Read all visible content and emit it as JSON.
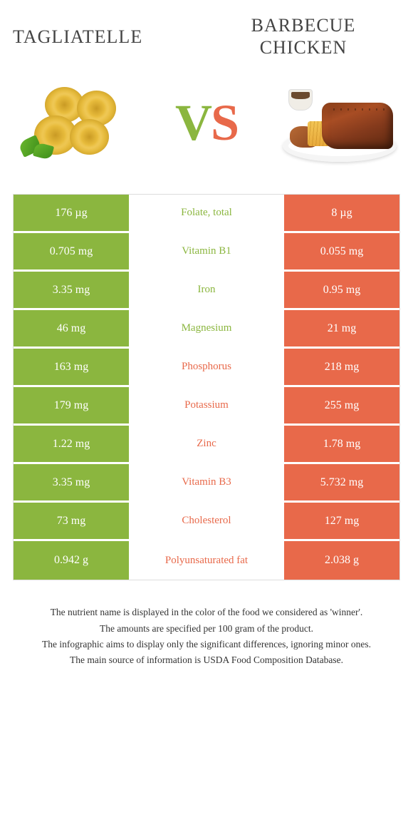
{
  "foods": {
    "left": {
      "name": "TAGLIATELLE",
      "color": "#8bb63f"
    },
    "right": {
      "name": "BARBECUE CHICKEN",
      "color": "#e8694a"
    }
  },
  "vs": {
    "v": "V",
    "s": "S"
  },
  "colors": {
    "green": "#8bb63f",
    "orange": "#e8694a",
    "row_gap": "#ffffff",
    "border": "#dddddd"
  },
  "rows": [
    {
      "nutrient": "Folate, total",
      "left": "176 µg",
      "right": "8 µg",
      "winner": "left"
    },
    {
      "nutrient": "Vitamin B1",
      "left": "0.705 mg",
      "right": "0.055 mg",
      "winner": "left"
    },
    {
      "nutrient": "Iron",
      "left": "3.35 mg",
      "right": "0.95 mg",
      "winner": "left"
    },
    {
      "nutrient": "Magnesium",
      "left": "46 mg",
      "right": "21 mg",
      "winner": "left"
    },
    {
      "nutrient": "Phosphorus",
      "left": "163 mg",
      "right": "218 mg",
      "winner": "right"
    },
    {
      "nutrient": "Potassium",
      "left": "179 mg",
      "right": "255 mg",
      "winner": "right"
    },
    {
      "nutrient": "Zinc",
      "left": "1.22 mg",
      "right": "1.78 mg",
      "winner": "right"
    },
    {
      "nutrient": "Vitamin B3",
      "left": "3.35 mg",
      "right": "5.732 mg",
      "winner": "right"
    },
    {
      "nutrient": "Cholesterol",
      "left": "73 mg",
      "right": "127 mg",
      "winner": "right"
    },
    {
      "nutrient": "Polyunsaturated fat",
      "left": "0.942 g",
      "right": "2.038 g",
      "winner": "right"
    }
  ],
  "footer": [
    "The nutrient name is displayed in the color of the food we considered as 'winner'.",
    "The amounts are specified per 100 gram of the product.",
    "The infographic aims to display only the significant differences, ignoring minor ones.",
    "The main source of information is USDA Food Composition Database."
  ]
}
